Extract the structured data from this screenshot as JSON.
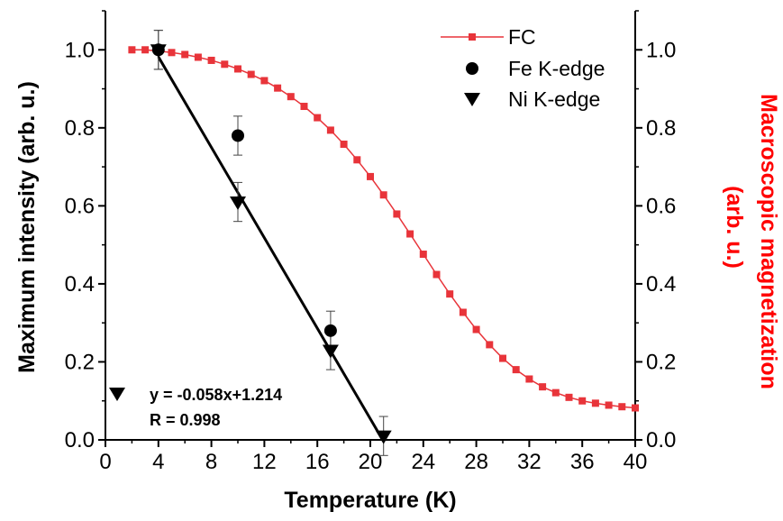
{
  "chart_data": {
    "type": "scatter",
    "title": "",
    "xlabel": "Temperature (K)",
    "ylabel": "Maximum intensity (arb. u.)",
    "y2label_line1": "Macroscopic magnetization",
    "y2label_line2": "(arb. u.)",
    "xlim": [
      0,
      40
    ],
    "ylim": [
      0,
      1.1
    ],
    "y2lim": [
      0,
      1.1
    ],
    "xticks": [
      0,
      4,
      8,
      12,
      16,
      20,
      24,
      28,
      32,
      36,
      40
    ],
    "yticks": [
      0.0,
      0.2,
      0.4,
      0.6,
      0.8,
      1.0
    ],
    "y2ticks": [
      0.0,
      0.2,
      0.4,
      0.6,
      0.8,
      1.0
    ],
    "grid": false,
    "legend_position": "top-right",
    "colors": {
      "fc": "#e8343a",
      "fc_label": "#ff0000",
      "markers": "#000000"
    },
    "series": [
      {
        "name": "FC",
        "axis": "right",
        "style": "line-square",
        "x": [
          2,
          3,
          4,
          5,
          6,
          7,
          8,
          9,
          10,
          11,
          12,
          13,
          14,
          15,
          16,
          17,
          18,
          19,
          20,
          21,
          22,
          23,
          24,
          25,
          26,
          27,
          28,
          29,
          30,
          31,
          32,
          33,
          34,
          35,
          36,
          37,
          38,
          39,
          40
        ],
        "values": [
          1.0,
          1.0,
          0.997,
          0.993,
          0.988,
          0.981,
          0.973,
          0.963,
          0.951,
          0.937,
          0.921,
          0.902,
          0.88,
          0.855,
          0.826,
          0.794,
          0.758,
          0.718,
          0.675,
          0.628,
          0.579,
          0.528,
          0.476,
          0.424,
          0.374,
          0.327,
          0.283,
          0.244,
          0.209,
          0.18,
          0.156,
          0.136,
          0.121,
          0.109,
          0.1,
          0.094,
          0.089,
          0.085,
          0.082
        ]
      },
      {
        "name": "Fe K-edge",
        "axis": "left",
        "style": "circle",
        "x": [
          4,
          10,
          17
        ],
        "values": [
          1.0,
          0.78,
          0.28
        ],
        "errors": [
          0.05,
          0.05,
          0.05
        ]
      },
      {
        "name": "Ni K-edge",
        "axis": "left",
        "style": "triangle-down",
        "x": [
          4,
          10,
          17,
          21
        ],
        "values": [
          1.0,
          0.61,
          0.23,
          0.01
        ],
        "errors": [
          0.05,
          0.05,
          0.05,
          0.05
        ]
      }
    ],
    "fit": {
      "slope": -0.058,
      "intercept": 1.214,
      "x_range": [
        4,
        21
      ],
      "equation": "y = -0.058x+1.214",
      "r_text": "R = 0.998"
    }
  }
}
